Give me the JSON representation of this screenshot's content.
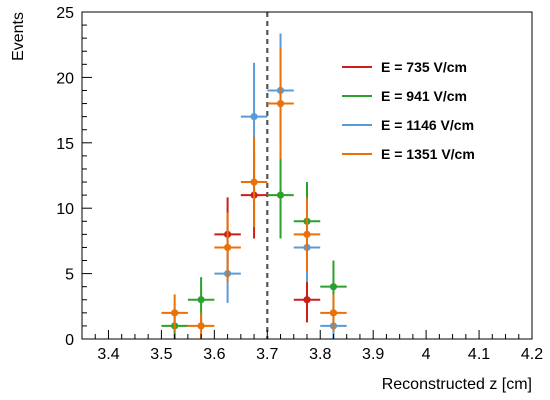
{
  "chart_data": {
    "type": "scatter",
    "xlabel": "Reconstructed z [cm]",
    "ylabel": "Events",
    "xlim": [
      3.35,
      4.2
    ],
    "ylim": [
      0,
      25
    ],
    "x_ticks": [
      3.4,
      3.5,
      3.6,
      3.7,
      3.8,
      3.9,
      4.0,
      4.1,
      4.2
    ],
    "x_tick_labels": [
      "3.4",
      "3.5",
      "3.6",
      "3.7",
      "3.8",
      "3.9",
      "4",
      "4.1",
      "4.2"
    ],
    "y_ticks": [
      0,
      5,
      10,
      15,
      20,
      25
    ],
    "y_tick_labels": [
      "0",
      "5",
      "10",
      "15",
      "20",
      "25"
    ],
    "bin_width": 0.05,
    "reference_line": {
      "x": 3.7,
      "style": "dashed",
      "color": "#555555"
    },
    "legend_placement": "top-right",
    "series": [
      {
        "name": "E = 735 V/cm",
        "color": "#cc1f1a",
        "points": [
          {
            "x": 3.625,
            "y": 8,
            "err": 2.83
          },
          {
            "x": 3.675,
            "y": 11,
            "err": 3.32
          },
          {
            "x": 3.775,
            "y": 3,
            "err": 1.73
          }
        ]
      },
      {
        "name": "E = 941 V/cm",
        "color": "#2ca02c",
        "points": [
          {
            "x": 3.525,
            "y": 1,
            "err": 1.0
          },
          {
            "x": 3.575,
            "y": 3,
            "err": 1.73
          },
          {
            "x": 3.725,
            "y": 11,
            "err": 3.32
          },
          {
            "x": 3.775,
            "y": 9,
            "err": 3.0
          },
          {
            "x": 3.825,
            "y": 4,
            "err": 2.0
          }
        ]
      },
      {
        "name": "E = 1146 V/cm",
        "color": "#5b9bd5",
        "points": [
          {
            "x": 3.625,
            "y": 5,
            "err": 2.24
          },
          {
            "x": 3.675,
            "y": 17,
            "err": 4.12
          },
          {
            "x": 3.725,
            "y": 19,
            "err": 4.36
          },
          {
            "x": 3.775,
            "y": 7,
            "err": 2.65
          },
          {
            "x": 3.825,
            "y": 1,
            "err": 1.0
          }
        ]
      },
      {
        "name": "E = 1351 V/cm",
        "color": "#e8710a",
        "points": [
          {
            "x": 3.525,
            "y": 2,
            "err": 1.41
          },
          {
            "x": 3.575,
            "y": 1,
            "err": 1.0
          },
          {
            "x": 3.625,
            "y": 7,
            "err": 2.65
          },
          {
            "x": 3.675,
            "y": 12,
            "err": 3.46
          },
          {
            "x": 3.725,
            "y": 18,
            "err": 4.24
          },
          {
            "x": 3.775,
            "y": 8,
            "err": 2.83
          },
          {
            "x": 3.825,
            "y": 2,
            "err": 1.41
          }
        ]
      }
    ]
  }
}
